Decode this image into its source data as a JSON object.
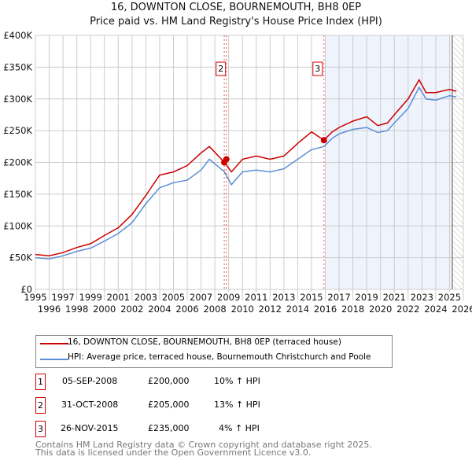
{
  "title": "16, DOWNTON CLOSE, BOURNEMOUTH, BH8 0EP",
  "subtitle": "Price paid vs. HM Land Registry's House Price Index (HPI)",
  "colors": {
    "price": "#cc0000",
    "hpi": "#5b8fd6",
    "shade": "#eef3fc"
  },
  "chart_data": {
    "type": "line",
    "xlim": [
      1995,
      2026
    ],
    "ylim": [
      0,
      400000
    ],
    "yticks": [
      {
        "v": 0,
        "l": "£0"
      },
      {
        "v": 50000,
        "l": "£50K"
      },
      {
        "v": 100000,
        "l": "£100K"
      },
      {
        "v": 150000,
        "l": "£150K"
      },
      {
        "v": 200000,
        "l": "£200K"
      },
      {
        "v": 250000,
        "l": "£250K"
      },
      {
        "v": 300000,
        "l": "£300K"
      },
      {
        "v": 350000,
        "l": "£350K"
      },
      {
        "v": 400000,
        "l": "£400K"
      }
    ],
    "xticks": [
      "1995",
      "1996",
      "1997",
      "1998",
      "1999",
      "2000",
      "2001",
      "2002",
      "2003",
      "2004",
      "2005",
      "2006",
      "2007",
      "2008",
      "2009",
      "2010",
      "2011",
      "2012",
      "2013",
      "2014",
      "2015",
      "2016",
      "2017",
      "2018",
      "2019",
      "2020",
      "2021",
      "2022",
      "2023",
      "2024",
      "2025",
      "2026"
    ],
    "series": [
      {
        "name": "16, DOWNTON CLOSE, BOURNEMOUTH, BH8 0EP (terraced house)",
        "x": [
          1995,
          1996,
          1997,
          1998,
          1999,
          2000,
          2001,
          2002,
          2003,
          2004,
          2005,
          2006,
          2007,
          2007.6,
          2008.7,
          2009.2,
          2010,
          2011,
          2012,
          2013,
          2014,
          2015,
          2015.9,
          2016.5,
          2017,
          2018,
          2019,
          2019.8,
          2020.5,
          2021,
          2022,
          2022.8,
          2023.3,
          2024,
          2025,
          2025.5
        ],
        "y": [
          55000,
          53000,
          58000,
          66000,
          72000,
          85000,
          97000,
          118000,
          148000,
          180000,
          185000,
          195000,
          215000,
          225000,
          200000,
          185000,
          205000,
          210000,
          205000,
          210000,
          230000,
          248000,
          235000,
          248000,
          255000,
          265000,
          272000,
          258000,
          262000,
          275000,
          300000,
          330000,
          310000,
          310000,
          315000,
          312000
        ]
      },
      {
        "name": "HPI: Average price, terraced house, Bournemouth Christchurch and Poole",
        "x": [
          1995,
          1996,
          1997,
          1998,
          1999,
          2000,
          2001,
          2002,
          2003,
          2004,
          2005,
          2006,
          2007,
          2007.6,
          2008.7,
          2009.2,
          2010,
          2011,
          2012,
          2013,
          2014,
          2015,
          2015.9,
          2016.5,
          2017,
          2018,
          2019,
          2019.8,
          2020.5,
          2021,
          2022,
          2022.8,
          2023.3,
          2024,
          2025,
          2025.5
        ],
        "y": [
          50000,
          48000,
          53000,
          60000,
          65000,
          76000,
          88000,
          105000,
          135000,
          160000,
          168000,
          172000,
          188000,
          205000,
          185000,
          165000,
          185000,
          188000,
          185000,
          190000,
          205000,
          220000,
          225000,
          238000,
          245000,
          252000,
          255000,
          247000,
          250000,
          262000,
          285000,
          318000,
          300000,
          298000,
          305000,
          303000
        ]
      }
    ],
    "sales": [
      {
        "n": "1",
        "x": 2008.68,
        "y": 200000
      },
      {
        "n": "2",
        "x": 2008.83,
        "y": 205000
      },
      {
        "n": "3",
        "x": 2015.9,
        "y": 235000
      }
    ]
  },
  "legend": [
    "16, DOWNTON CLOSE, BOURNEMOUTH, BH8 0EP (terraced house)",
    "HPI: Average price, terraced house, Bournemouth Christchurch and Poole"
  ],
  "transactions": [
    {
      "n": "1",
      "date": "05-SEP-2008",
      "price": "£200,000",
      "hpi": "10% ↑ HPI"
    },
    {
      "n": "2",
      "date": "31-OCT-2008",
      "price": "£205,000",
      "hpi": "13% ↑ HPI"
    },
    {
      "n": "3",
      "date": "26-NOV-2015",
      "price": "£235,000",
      "hpi": "4% ↑ HPI"
    }
  ],
  "footer": [
    "Contains HM Land Registry data © Crown copyright and database right 2025.",
    "This data is licensed under the Open Government Licence v3.0."
  ]
}
